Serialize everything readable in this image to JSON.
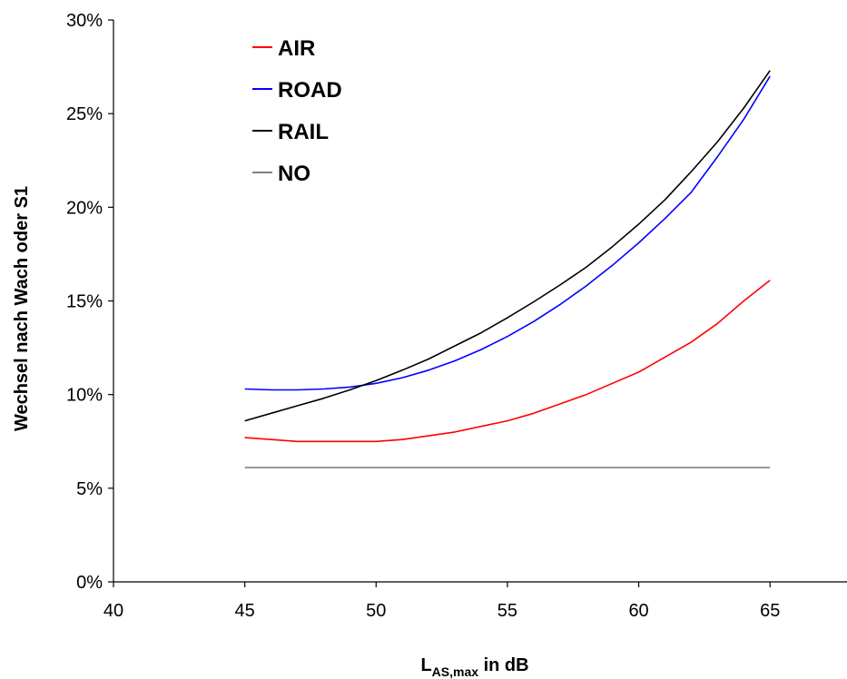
{
  "chart_data": {
    "type": "line",
    "title": "",
    "ylabel": "Wechsel nach Wach oder S1",
    "xlabel_main": "L",
    "xlabel_sub": "AS,max",
    "xlabel_suffix": " in dB",
    "xlim": [
      40,
      68
    ],
    "ylim": [
      0,
      30
    ],
    "x_ticks": [
      40,
      45,
      50,
      55,
      60,
      65
    ],
    "x_tick_labels": [
      "40",
      "45",
      "50",
      "55",
      "60",
      "65"
    ],
    "y_ticks": [
      0,
      5,
      10,
      15,
      20,
      25,
      30
    ],
    "y_tick_labels": [
      "0%",
      "5%",
      "10%",
      "15%",
      "20%",
      "25%",
      "30%"
    ],
    "grid": false,
    "legend_position": "top-left",
    "x": [
      45,
      46,
      47,
      48,
      49,
      50,
      51,
      52,
      53,
      54,
      55,
      56,
      57,
      58,
      59,
      60,
      61,
      62,
      63,
      64,
      65
    ],
    "series": [
      {
        "name": "AIR",
        "color": "#ff0000",
        "values": [
          7.7,
          7.6,
          7.5,
          7.5,
          7.5,
          7.5,
          7.6,
          7.8,
          8.0,
          8.3,
          8.6,
          9.0,
          9.5,
          10.0,
          10.6,
          11.2,
          12.0,
          12.8,
          13.8,
          15.0,
          16.1
        ]
      },
      {
        "name": "ROAD",
        "color": "#0000ff",
        "values": [
          10.3,
          10.25,
          10.25,
          10.3,
          10.4,
          10.6,
          10.9,
          11.3,
          11.8,
          12.4,
          13.1,
          13.9,
          14.8,
          15.8,
          16.9,
          18.1,
          19.4,
          20.8,
          22.7,
          24.7,
          27.0
        ]
      },
      {
        "name": "RAIL",
        "color": "#000000",
        "values": [
          8.6,
          9.0,
          9.4,
          9.8,
          10.25,
          10.75,
          11.3,
          11.9,
          12.6,
          13.3,
          14.1,
          14.95,
          15.85,
          16.8,
          17.9,
          19.1,
          20.4,
          21.9,
          23.5,
          25.3,
          27.3
        ]
      },
      {
        "name": "NO",
        "color": "#808080",
        "values": [
          6.1,
          6.1,
          6.1,
          6.1,
          6.1,
          6.1,
          6.1,
          6.1,
          6.1,
          6.1,
          6.1,
          6.1,
          6.1,
          6.1,
          6.1,
          6.1,
          6.1,
          6.1,
          6.1,
          6.1,
          6.1
        ]
      }
    ]
  }
}
